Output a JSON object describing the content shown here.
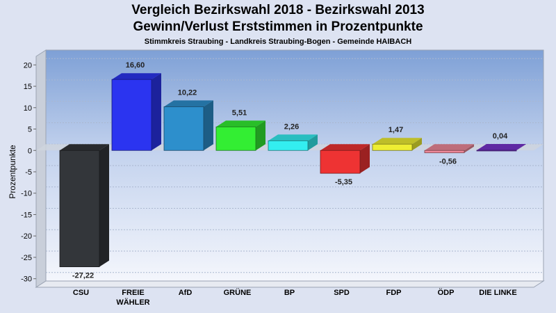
{
  "header": {
    "title_line1": "Vergleich Bezirkswahl 2018 - Bezirkswahl 2013",
    "title_line2": "Gewinn/Verlust Erststimmen in Prozentpunkte",
    "subtitle": "Stimmkreis Straubing - Landkreis Straubing-Bogen - Gemeinde HAIBACH"
  },
  "chart_data": {
    "type": "bar",
    "title": "Vergleich Bezirkswahl 2018 - Bezirkswahl 2013 / Gewinn/Verlust Erststimmen in Prozentpunkte",
    "subtitle": "Stimmkreis Straubing - Landkreis Straubing-Bogen - Gemeinde HAIBACH",
    "xlabel": "",
    "ylabel": "Prozentpunkte",
    "ylim": [
      -32,
      22
    ],
    "yticks": [
      20,
      15,
      10,
      5,
      0,
      -5,
      -10,
      -15,
      -20,
      -25,
      -30
    ],
    "grid": true,
    "categories": [
      "CSU",
      "FREIE WÄHLER",
      "AfD",
      "GRÜNE",
      "BP",
      "SPD",
      "FDP",
      "ÖDP",
      "DIE LINKE"
    ],
    "category_lines": [
      [
        "CSU"
      ],
      [
        "FREIE",
        "WÄHLER"
      ],
      [
        "AfD"
      ],
      [
        "GRÜNE"
      ],
      [
        "BP"
      ],
      [
        "SPD"
      ],
      [
        "FDP"
      ],
      [
        "ÖDP"
      ],
      [
        "DIE LINKE"
      ]
    ],
    "values": [
      -27.22,
      16.6,
      10.22,
      5.51,
      2.26,
      -5.35,
      1.47,
      -0.56,
      0.04
    ],
    "value_labels": [
      "-27,22",
      "16,60",
      "10,22",
      "5,51",
      "2,26",
      "-5,35",
      "1,47",
      "-0,56",
      "0,04"
    ],
    "colors": [
      "#33363a",
      "#2b34f0",
      "#2d8fcc",
      "#33ee33",
      "#33eef0",
      "#ee3333",
      "#eeee33",
      "#ee8899",
      "#7733cc"
    ]
  }
}
